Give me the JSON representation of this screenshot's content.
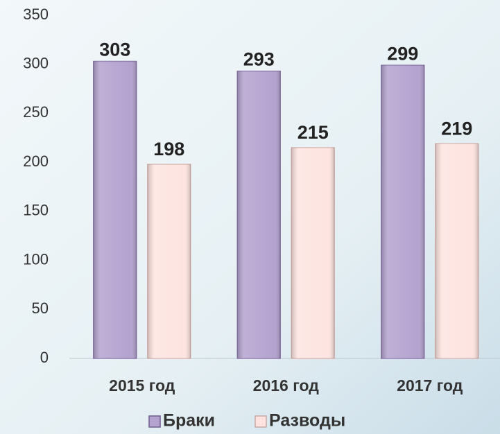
{
  "chart_data": {
    "type": "bar",
    "categories": [
      "2015 год",
      "2016 год",
      "2017 год"
    ],
    "series": [
      {
        "name": "Браки",
        "color": "#b4a2cf",
        "values": [
          303,
          293,
          299
        ]
      },
      {
        "name": "Разводы",
        "color": "#fde4e0",
        "values": [
          198,
          215,
          219
        ]
      }
    ],
    "ylim": [
      0,
      350
    ],
    "yticks": [
      0,
      50,
      100,
      150,
      200,
      250,
      300,
      350
    ],
    "legend": "bottom"
  }
}
